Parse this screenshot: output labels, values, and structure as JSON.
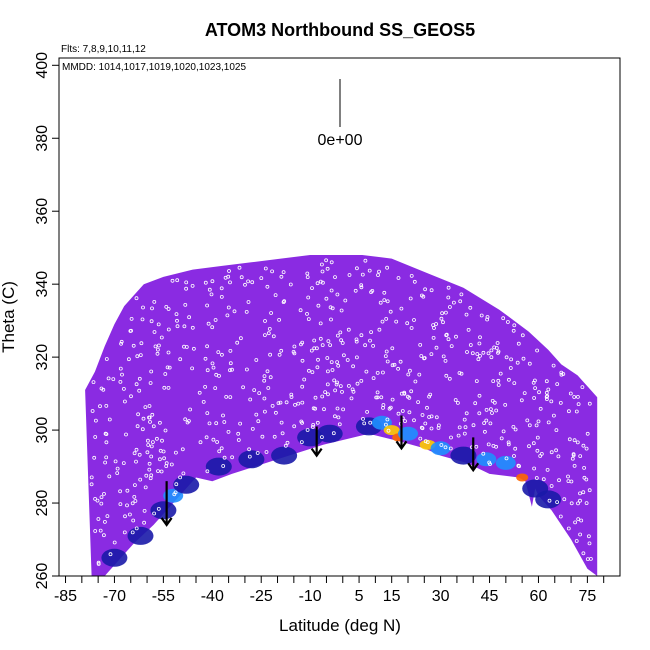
{
  "chart_data": {
    "type": "heatmap",
    "title": "ATOM3 Northbound SS_GEOS5",
    "flights_note": "Flts: 7,8,9,10,11,12",
    "dates_note": "MMDD: 1014,1017,1019,1020,1023,1025",
    "xlabel": "Latitude (deg N)",
    "ylabel": "Theta (C)",
    "xlim": [
      -87,
      85
    ],
    "ylim": [
      260,
      402
    ],
    "x_ticks": [
      -85,
      -70,
      -55,
      -40,
      -25,
      -10,
      5,
      15,
      30,
      45,
      60,
      75
    ],
    "x_minor_ticks": [
      -80,
      -75,
      -65,
      -60,
      -50,
      -45,
      -35,
      -30,
      -20,
      -15,
      -5,
      0,
      10,
      20,
      25,
      35,
      40,
      50,
      55,
      65,
      70,
      80
    ],
    "y_ticks": [
      260,
      280,
      300,
      320,
      340,
      360,
      380,
      400
    ],
    "legend_value": "0e+00",
    "colors": {
      "background_field": "#8a2be2",
      "low": "#1a1aa8",
      "mid": "#1e90ff",
      "high": "#ffcc00",
      "peak": "#ff6600"
    },
    "upper_boundary": [
      [
        -79,
        311
      ],
      [
        -76,
        316
      ],
      [
        -73,
        323
      ],
      [
        -70,
        329
      ],
      [
        -67,
        334
      ],
      [
        -64,
        337
      ],
      [
        -61,
        340
      ],
      [
        -55,
        342
      ],
      [
        -46,
        344
      ],
      [
        -37,
        345
      ],
      [
        -28,
        346
      ],
      [
        -19,
        347
      ],
      [
        -10,
        348
      ],
      [
        1,
        348
      ],
      [
        6,
        348
      ],
      [
        15,
        347
      ],
      [
        26,
        343
      ],
      [
        37,
        339
      ],
      [
        48,
        333
      ],
      [
        57,
        327
      ],
      [
        63,
        322
      ],
      [
        67,
        318
      ],
      [
        72,
        315
      ],
      [
        75,
        312
      ],
      [
        78,
        309
      ]
    ],
    "lower_boundary": [
      [
        78,
        260
      ],
      [
        75,
        262
      ],
      [
        70,
        270
      ],
      [
        64,
        278
      ],
      [
        60,
        282
      ],
      [
        59,
        284
      ],
      [
        58,
        279
      ],
      [
        56,
        286
      ],
      [
        54,
        287
      ],
      [
        45,
        288
      ],
      [
        38,
        291
      ],
      [
        30,
        293
      ],
      [
        25,
        295
      ],
      [
        17,
        297
      ],
      [
        8,
        299
      ],
      [
        -6,
        296
      ],
      [
        -20,
        292
      ],
      [
        -34,
        288
      ],
      [
        -40,
        286
      ],
      [
        -45,
        287
      ],
      [
        -50,
        282
      ],
      [
        -58,
        274
      ],
      [
        -64,
        269
      ],
      [
        -70,
        263
      ],
      [
        -73,
        260
      ],
      [
        -77,
        260
      ]
    ],
    "enhanced_band": [
      {
        "lat": -70,
        "theta": 265,
        "level": "low"
      },
      {
        "lat": -62,
        "theta": 271,
        "level": "low"
      },
      {
        "lat": -55,
        "theta": 278,
        "level": "low"
      },
      {
        "lat": -52,
        "theta": 282,
        "level": "mid"
      },
      {
        "lat": -48,
        "theta": 285,
        "level": "low"
      },
      {
        "lat": -38,
        "theta": 290,
        "level": "low"
      },
      {
        "lat": -28,
        "theta": 292,
        "level": "low"
      },
      {
        "lat": -18,
        "theta": 293,
        "level": "low"
      },
      {
        "lat": -10,
        "theta": 298,
        "level": "low"
      },
      {
        "lat": -4,
        "theta": 299,
        "level": "low"
      },
      {
        "lat": 8,
        "theta": 301,
        "level": "low"
      },
      {
        "lat": 12,
        "theta": 302,
        "level": "mid"
      },
      {
        "lat": 15,
        "theta": 300,
        "level": "high"
      },
      {
        "lat": 17,
        "theta": 298,
        "level": "peak"
      },
      {
        "lat": 20,
        "theta": 299,
        "level": "mid"
      },
      {
        "lat": 26,
        "theta": 296,
        "level": "high"
      },
      {
        "lat": 30,
        "theta": 295,
        "level": "mid"
      },
      {
        "lat": 37,
        "theta": 293,
        "level": "low"
      },
      {
        "lat": 44,
        "theta": 292,
        "level": "mid"
      },
      {
        "lat": 50,
        "theta": 291,
        "level": "mid"
      },
      {
        "lat": 55,
        "theta": 287,
        "level": "peak"
      },
      {
        "lat": 59,
        "theta": 284,
        "level": "low"
      },
      {
        "lat": 63,
        "theta": 281,
        "level": "low"
      }
    ],
    "arrows": [
      {
        "lat": -54,
        "theta_top": 286,
        "theta_tip": 274
      },
      {
        "lat": -8,
        "theta_top": 301,
        "theta_tip": 293
      },
      {
        "lat": 18,
        "theta_top": 304,
        "theta_tip": 295
      },
      {
        "lat": 40,
        "theta_top": 298,
        "theta_tip": 289
      }
    ]
  }
}
